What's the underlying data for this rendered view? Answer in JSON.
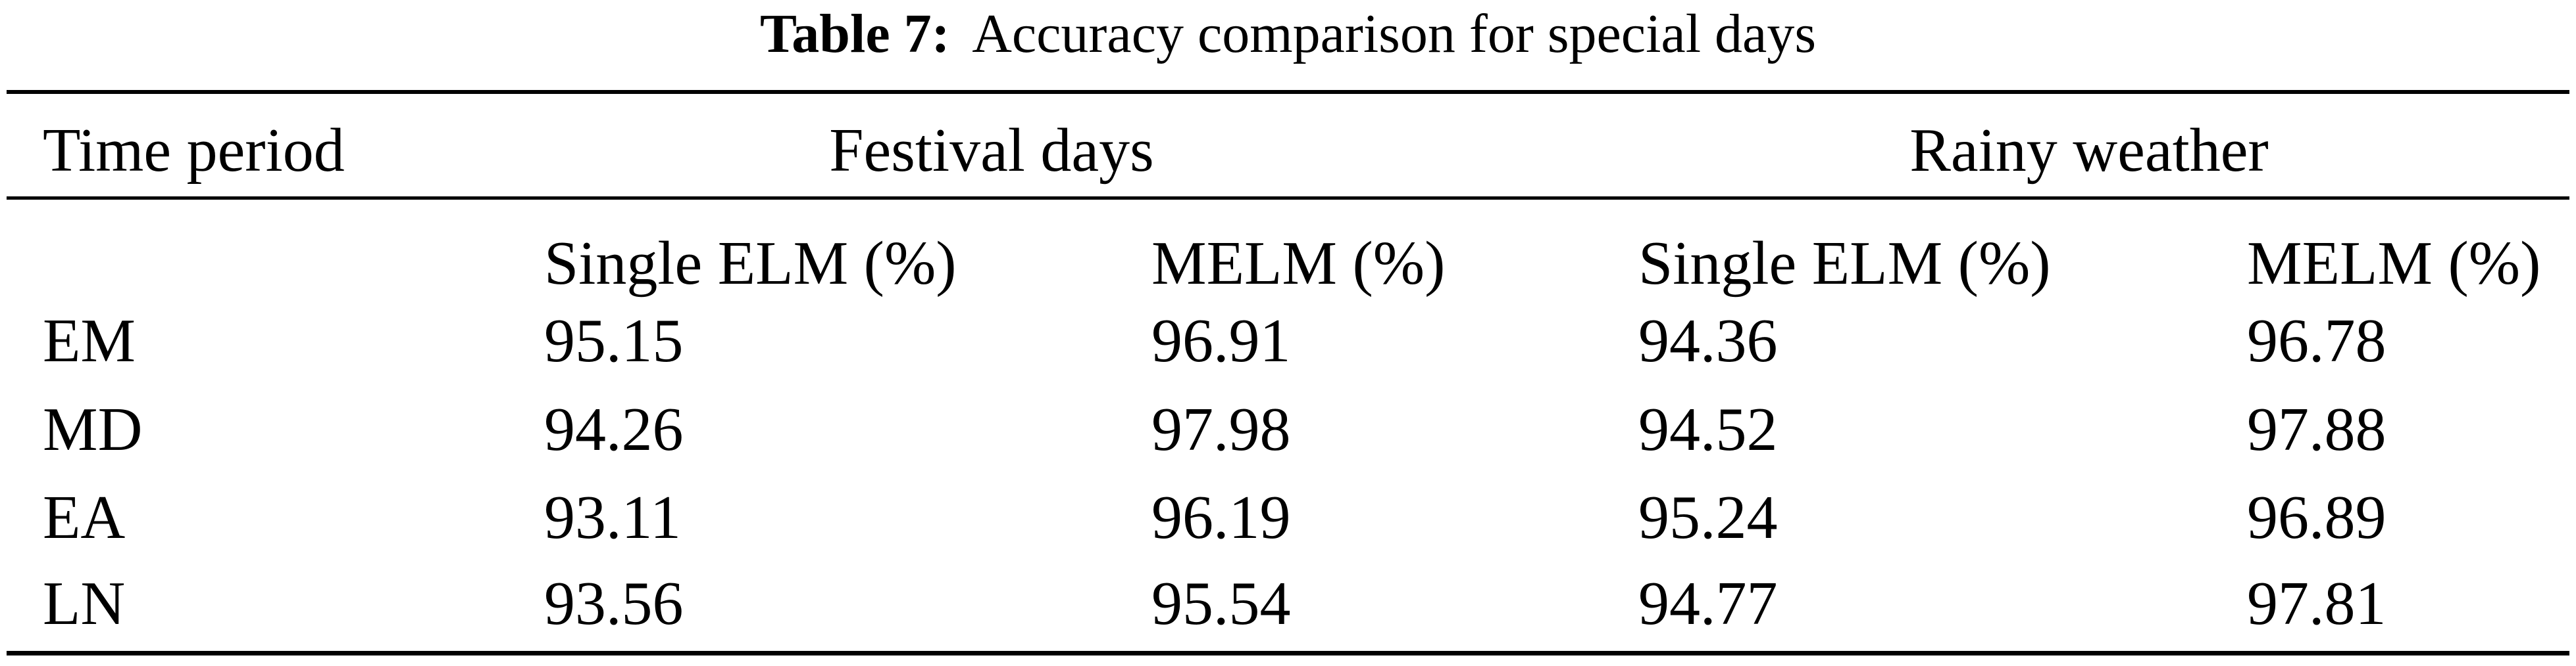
{
  "title": {
    "prefix": "Table 7:",
    "text": "Accuracy comparison for special days"
  },
  "colors": {
    "text": "#000000",
    "background": "#ffffff",
    "rule": "#000000"
  },
  "columns": {
    "row_header": "Time period",
    "group_festival": "Festival days",
    "group_rainy": "Rainy weather",
    "festival_single": "Single ELM (%)",
    "festival_melm": "MELM (%)",
    "rainy_single": "Single ELM (%)",
    "rainy_melm": "MELM (%)"
  },
  "rows": [
    {
      "period": "EM",
      "festival_single": "95.15",
      "festival_melm": "96.91",
      "rainy_single": "94.36",
      "rainy_melm": "96.78"
    },
    {
      "period": "MD",
      "festival_single": "94.26",
      "festival_melm": "97.98",
      "rainy_single": "94.52",
      "rainy_melm": "97.88"
    },
    {
      "period": "EA",
      "festival_single": "93.11",
      "festival_melm": "96.19",
      "rainy_single": "95.24",
      "rainy_melm": "96.89"
    },
    {
      "period": "LN",
      "festival_single": "93.56",
      "festival_melm": "95.54",
      "rainy_single": "94.77",
      "rainy_melm": "97.81"
    }
  ]
}
